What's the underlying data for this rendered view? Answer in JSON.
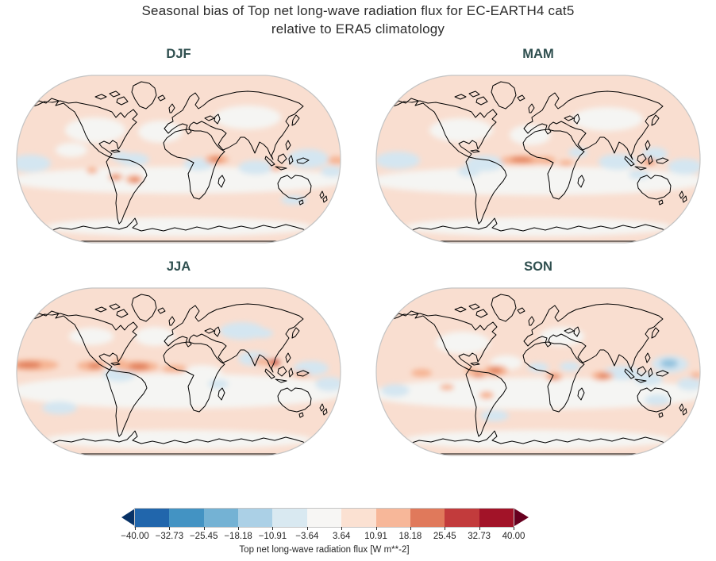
{
  "title": {
    "line1": "Seasonal bias of Top net long-wave radiation flux for EC-EARTH4 cat5",
    "line2": "relative to ERA5 climatology"
  },
  "panels": [
    {
      "label": "DJF"
    },
    {
      "label": "MAM"
    },
    {
      "label": "JJA"
    },
    {
      "label": "SON"
    }
  ],
  "colorbar": {
    "label": "Top net long-wave radiation flux [W m**-2]",
    "ticks": [
      "−40.00",
      "−32.73",
      "−25.45",
      "−18.18",
      "−10.91",
      "−3.64",
      "3.64",
      "10.91",
      "18.18",
      "25.45",
      "32.73",
      "40.00"
    ],
    "segment_colors": [
      "#2166ac",
      "#4393c3",
      "#74b2d4",
      "#abd0e6",
      "#d9e9f1",
      "#f7f6f4",
      "#fbe1d2",
      "#f7b799",
      "#e0795b",
      "#c23b3c",
      "#a21328"
    ],
    "extend_left_color": "#083266",
    "extend_right_color": "#67001f"
  },
  "colors": {
    "figure_background": "#ffffff",
    "panel_title": "#2f4f4f",
    "main_title": "#2b2b2b",
    "coastline": "#000000",
    "map_outline": "#c4c4c4",
    "map_base_weak_positive": "#f9ded0",
    "map_neutral": "#f5f5f3",
    "map_weak_negative": "#d4e6f1",
    "map_moderate_negative": "#92c2de",
    "map_moderate_positive": "#f6b493",
    "map_strong_positive": "#e07a55",
    "map_very_strong_positive": "#b93438"
  },
  "chart_data": {
    "type": "heatmap",
    "subtype": "filled-contour global maps, Robinson projection, 2x2 seasonal grid",
    "title": "Seasonal bias of Top net long-wave radiation flux for EC-EARTH4 cat5 relative to ERA5 climatology",
    "panels": [
      "DJF",
      "MAM",
      "JJA",
      "SON"
    ],
    "variable": "Top net long-wave radiation flux",
    "units": "W m**-2",
    "colormap": "diverging red-blue (RdBu_r style), 11 intervals, extended arrows both ends",
    "levels": [
      -40.0,
      -32.73,
      -25.45,
      -18.18,
      -10.91,
      -3.64,
      3.64,
      10.91,
      18.18,
      25.45,
      32.73,
      40.0
    ],
    "value_range": [
      -40,
      40
    ],
    "legend_position": "bottom horizontal colorbar",
    "summary": {
      "DJF": "Weak positive bias (+3.6 to +10.9) over most NH continents and the Southern Ocean belt; scattered weak negative patches (-3.6 to -10.9) over tropical/subtropical oceans; local +10.9 to +18.2 spots over equatorial east Africa, Peru/Brazil and the central-west Pacific.",
      "MAM": "Broad weak positive bias; stronger positive band (+10.9 to +18.2) along the equatorial Atlantic and Gulf of Guinea; weak negative patches over NW South America, Indian Ocean and west Pacific.",
      "JJA": "Positive band (+10.9 to +25.5) along the ITCZ in the east Pacific and tropical Atlantic; strongest positive bias (+25 to +40) near Indochina/Maritime Continent; negative patches (-3.6 to -18.2) over central Asia, Arabian Sea/India and parts of the tropical oceans.",
      "SON": "Broad weak positive bias; pronounced negative center (-10.9 to -25.5) over the tropical west Pacific east of the Philippines; positive spots (+10.9 to +18.2) over the equatorial Atlantic, central Africa, Indian Ocean and tropical South America."
    }
  }
}
